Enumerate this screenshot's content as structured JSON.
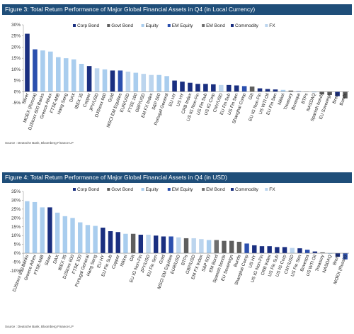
{
  "colors": {
    "Corp Bond": "#1a2f80",
    "Govt Bond": "#5e5e5e",
    "Equity": "#a9cdee",
    "EM Equity": "#2b4fae",
    "EM Bond": "#6f6f6f",
    "Commodity": "#1a2f80",
    "FX": "#bcd5ee"
  },
  "chart_data": [
    {
      "type": "bar",
      "title": "Figure 3: Total Return Performance of Major Global Financial Assets in Q4 (in Local Currency)",
      "source": "Source : Deutsche Bank, Bloomberg Finance LP",
      "ylim": [
        -5,
        30
      ],
      "yticks": [
        -5,
        0,
        5,
        10,
        15,
        20,
        25,
        30
      ],
      "tick_suffix": "%",
      "legend_placement": "top-right",
      "legend": [
        "Corp Bond",
        "Govt Bond",
        "Equity",
        "EM Equity",
        "EM Bond",
        "Commodity",
        "FX"
      ],
      "categories": [
        "Silver",
        "MOEX (Russia)",
        "DJStoxx 600 Banks",
        "Greece Athex",
        "FTSE-MIB",
        "Hang Seng",
        "DAX",
        "IBEX 35",
        "Copper",
        "JPY/USD",
        "DJStoxx 600",
        "Gold",
        "MSCI EM Equities",
        "EUR/USD",
        "FTSE 100",
        "GBP/USD",
        "EM FX Index",
        "S&P 500",
        "Portugal General",
        "EU HY",
        "US HY",
        "CRB Index",
        "US IG Non-Fin",
        "US Fin Sub",
        "US IG Corp",
        "CNY/USD",
        "EU Fin Sub",
        "US Fin Sen",
        "Shanghai Comp",
        "Gilt",
        "EU IG Non-Fin",
        "US WTI Oil",
        "EU Fin Sen",
        "Nikkei",
        "Treasury",
        "Bovespa",
        "BTPs",
        "NASDAQ",
        "Spanish bonds",
        "EU Sovereign",
        "Brent",
        "Bunds"
      ],
      "values": [
        26,
        19,
        18.5,
        18,
        15.5,
        15,
        14.5,
        12.5,
        11.5,
        10.5,
        10,
        9.5,
        9.5,
        9,
        8.5,
        8,
        7.5,
        7.5,
        7,
        5,
        4.5,
        4,
        3.5,
        3.5,
        3.3,
        3,
        3,
        2.8,
        2.5,
        2.3,
        1.5,
        1.2,
        1,
        0.8,
        0.5,
        0.2,
        0,
        -0.3,
        -1.2,
        -1.5,
        -2,
        -3
      ],
      "asset_class": [
        "Commodity",
        "EM Equity",
        "Equity",
        "Equity",
        "Equity",
        "Equity",
        "Equity",
        "Equity",
        "Commodity",
        "FX",
        "Equity",
        "Commodity",
        "EM Equity",
        "FX",
        "Equity",
        "FX",
        "FX",
        "Equity",
        "Equity",
        "Corp Bond",
        "Corp Bond",
        "Commodity",
        "Corp Bond",
        "Corp Bond",
        "Corp Bond",
        "FX",
        "Corp Bond",
        "Corp Bond",
        "EM Equity",
        "Govt Bond",
        "Corp Bond",
        "Commodity",
        "Corp Bond",
        "Equity",
        "Govt Bond",
        "EM Equity",
        "Govt Bond",
        "Equity",
        "Govt Bond",
        "Govt Bond",
        "Commodity",
        "Govt Bond"
      ]
    },
    {
      "type": "bar",
      "title": "Figure 4: Total Return Performance of Major Global Financial Assets in Q4 (in USD)",
      "source": "Source : Deutsche Bank, Bloomberg Finance LP",
      "ylim": [
        -10,
        35
      ],
      "yticks": [
        -10,
        -5,
        0,
        5,
        10,
        15,
        20,
        25,
        30,
        35
      ],
      "tick_suffix": "%",
      "legend_placement": "top-right",
      "legend": [
        "Corp Bond",
        "Govt Bond",
        "Equity",
        "EM Equity",
        "EM Bond",
        "Commodity",
        "FX"
      ],
      "categories": [
        "DJStoxx 600 Banks",
        "Greece Athex",
        "FTSE-MIB",
        "Silver",
        "DAX",
        "IBEX 35",
        "DJStoxx 600",
        "FTSE 100",
        "Portugal General",
        "Hang Seng",
        "EU HY",
        "EU Fin Sub",
        "Copper",
        "Nikkei",
        "Gilt",
        "EU IG Non-Fin",
        "JPY/USD",
        "EU Fin Sen",
        "Gold",
        "MSCI EM Equities",
        "EUR/USD",
        "BTPs",
        "GBP/USD",
        "EM FX Index",
        "S&P 500",
        "EM Bond",
        "Spanish bonds",
        "EU Sovereign",
        "Bunds",
        "Shanghai Comp",
        "US HY",
        "US IG Non-Fin",
        "CRB Index",
        "US Fin Sub",
        "US IG Corp",
        "CNY/USD",
        "US Fin Sen",
        "Bovespa",
        "US WTI Oil",
        "Treasury",
        "NASDAQ",
        "Brent",
        "MOEX (Russia)"
      ],
      "values": [
        29.5,
        29,
        26,
        26,
        23,
        21,
        20,
        17.5,
        16,
        15.5,
        14.5,
        12.5,
        12,
        11,
        11,
        10.5,
        10.5,
        10,
        9.5,
        9.5,
        9,
        8.5,
        8.5,
        8,
        7.5,
        7.5,
        7,
        7,
        6.5,
        5.5,
        4.5,
        4,
        4,
        3.5,
        3.5,
        3,
        2.8,
        2,
        1,
        0.5,
        -0.3,
        -2,
        -3.5
      ],
      "asset_class": [
        "Equity",
        "Equity",
        "Equity",
        "Commodity",
        "Equity",
        "Equity",
        "Equity",
        "Equity",
        "Equity",
        "Equity",
        "Corp Bond",
        "Corp Bond",
        "Commodity",
        "Equity",
        "Govt Bond",
        "Corp Bond",
        "FX",
        "Corp Bond",
        "Commodity",
        "EM Equity",
        "FX",
        "Govt Bond",
        "FX",
        "FX",
        "Equity",
        "EM Bond",
        "Govt Bond",
        "Govt Bond",
        "Govt Bond",
        "EM Equity",
        "Corp Bond",
        "Corp Bond",
        "Commodity",
        "Corp Bond",
        "Corp Bond",
        "FX",
        "Corp Bond",
        "EM Equity",
        "Commodity",
        "Govt Bond",
        "Equity",
        "Commodity",
        "EM Equity"
      ]
    }
  ]
}
